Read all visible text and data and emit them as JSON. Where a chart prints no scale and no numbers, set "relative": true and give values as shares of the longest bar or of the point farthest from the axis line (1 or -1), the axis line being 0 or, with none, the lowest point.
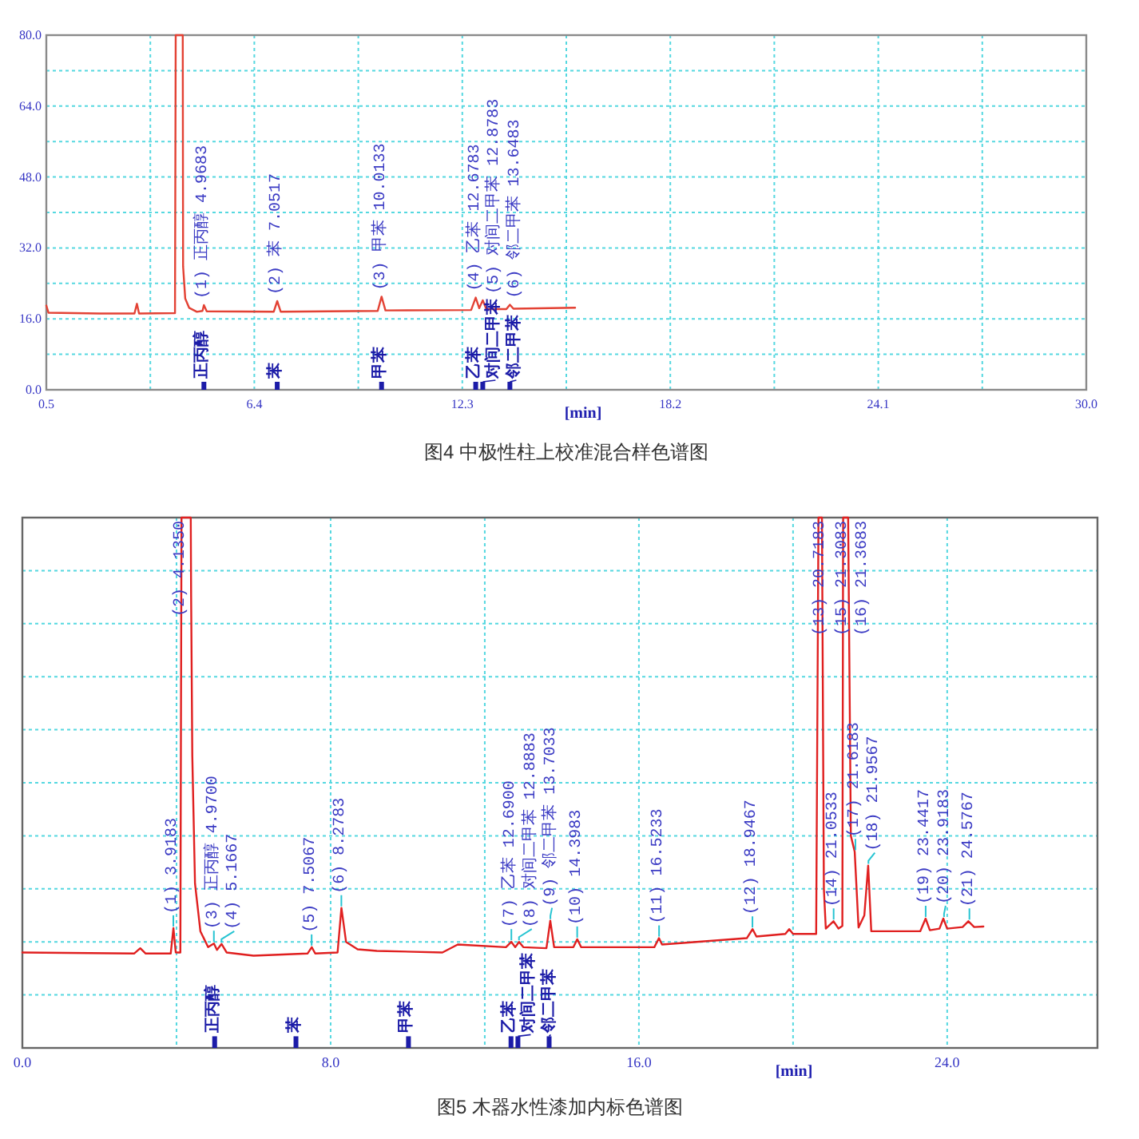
{
  "chart_data": [
    {
      "type": "line",
      "title": "图4 中极性柱上校准混合样色谱图",
      "xlabel": "[min]",
      "series": [
        {
          "color": "#e34234",
          "x": [
            0.5,
            0.56,
            2.0,
            3.0,
            3.07,
            3.13,
            4.15,
            4.17,
            4.37,
            4.38,
            4.44,
            4.55,
            4.77,
            4.93,
            4.97,
            5.05,
            6.95,
            7.05,
            7.15,
            9.9,
            10.01,
            10.12,
            12.55,
            12.68,
            12.78,
            12.88,
            12.98,
            13.55,
            13.65,
            13.75,
            15.5
          ],
          "values": [
            19.0,
            17.4,
            17.2,
            17.2,
            19.4,
            17.2,
            17.3,
            80,
            80,
            27.8,
            20.6,
            18.5,
            17.6,
            17.8,
            19.1,
            17.7,
            17.6,
            20.0,
            17.6,
            17.8,
            21.0,
            17.9,
            18.0,
            20.8,
            18.4,
            20.2,
            18.2,
            18.2,
            19.2,
            18.3,
            18.5
          ]
        },
        {
          "type": "bar",
          "color": "#1c1ca8",
          "x": [
            4.97,
            7.05,
            10.01,
            12.68,
            12.88,
            13.65
          ],
          "values": [
            1.8,
            1.8,
            1.8,
            1.8,
            1.8,
            1.8
          ]
        }
      ],
      "xlim": [
        0.5,
        30
      ],
      "xticks": [
        0.5,
        {
          "value": 3.45,
          "label": null
        },
        6.4,
        {
          "value": 9.35,
          "label": null
        },
        12.3,
        {
          "value": 15.25,
          "label": null
        },
        18.2,
        {
          "value": 21.15,
          "label": null
        },
        24.1,
        {
          "value": 27.05,
          "label": null
        },
        {
          "value": 30,
          "label": "30.0"
        }
      ],
      "ylim": [
        0,
        80
      ],
      "yticks": [
        {
          "value": 0,
          "label": "0.0"
        },
        {
          "value": 8,
          "label": null
        },
        {
          "value": 16,
          "label": "16.0"
        },
        {
          "value": 24,
          "label": null
        },
        {
          "value": 32,
          "label": "32.0"
        },
        {
          "value": 40,
          "label": null
        },
        {
          "value": 48,
          "label": "48.0"
        },
        {
          "value": 56,
          "label": null
        },
        {
          "value": 64,
          "label": "64.0"
        },
        {
          "value": 72,
          "label": null
        },
        {
          "value": 80,
          "label": "80.0"
        }
      ],
      "grid": true,
      "annotations": [
        {
          "text": "(1) 正丙醇 4.9683",
          "x": 4.9683,
          "y": 19.1
        },
        {
          "text": "(2) 苯 7.0517",
          "x": 7.0517,
          "y": 20.0
        },
        {
          "text": "(3) 甲苯 10.0133",
          "x": 10.0133,
          "y": 21.0
        },
        {
          "text": "(4) 乙苯 12.6783",
          "x": 12.6783,
          "y": 20.8
        },
        {
          "text": "(5) 对间二甲苯 12.8783",
          "x": 12.8783,
          "y": 20.2
        },
        {
          "text": "(6) 邻二甲苯 13.6483",
          "x": 13.6483,
          "y": 19.2
        },
        {
          "text": "正丙醇",
          "x": 4.97,
          "y": 1.8
        },
        {
          "text": "苯",
          "x": 7.05,
          "y": 1.8
        },
        {
          "text": "甲苯",
          "x": 10.01,
          "y": 1.8
        },
        {
          "text": "乙苯",
          "x": 12.68,
          "y": 1.8
        },
        {
          "text": "对间二甲苯",
          "x": 12.88,
          "y": 1.8
        },
        {
          "text": "邻二甲苯",
          "x": 13.65,
          "y": 1.8
        }
      ]
    },
    {
      "type": "line",
      "title": "图5 木器水性漆加内标色谱图",
      "xlabel": "[min]",
      "relative": true,
      "series": [
        {
          "color": "#e02020",
          "x": [
            0,
            2.9,
            3.06,
            3.2,
            3.85,
            3.92,
            3.98,
            4.1,
            4.13,
            4.37,
            4.38,
            4.41,
            4.48,
            4.62,
            4.82,
            4.97,
            5.05,
            5.17,
            5.3,
            6.0,
            7.4,
            7.51,
            7.6,
            8.18,
            8.28,
            8.4,
            8.7,
            9.2,
            10.9,
            11.3,
            12.55,
            12.69,
            12.79,
            12.89,
            13.0,
            13.6,
            13.7,
            13.8,
            14.3,
            14.4,
            14.5,
            16.4,
            16.52,
            16.6,
            18.8,
            18.95,
            19.05,
            19.8,
            19.9,
            20.0,
            20.6,
            20.66,
            20.75,
            20.8,
            20.85,
            21.05,
            21.18,
            21.28,
            21.3,
            21.43,
            21.5,
            21.6,
            21.7,
            21.85,
            21.95,
            22.03,
            23.3,
            23.44,
            23.55,
            23.8,
            23.9,
            24.0,
            24.4,
            24.55,
            24.7,
            24.94
          ],
          "values": [
            0.18,
            0.178,
            0.188,
            0.178,
            0.178,
            0.226,
            0.18,
            0.18,
            1,
            1,
            0.85,
            0.55,
            0.31,
            0.22,
            0.19,
            0.197,
            0.185,
            0.196,
            0.18,
            0.174,
            0.178,
            0.19,
            0.178,
            0.18,
            0.264,
            0.2,
            0.186,
            0.183,
            0.18,
            0.195,
            0.19,
            0.2,
            0.19,
            0.2,
            0.19,
            0.188,
            0.24,
            0.19,
            0.19,
            0.205,
            0.19,
            0.19,
            0.207,
            0.195,
            0.207,
            0.224,
            0.21,
            0.215,
            0.224,
            0.215,
            0.215,
            1,
            1,
            0.3,
            0.225,
            0.239,
            0.225,
            0.23,
            1,
            1,
            0.4,
            0.37,
            0.227,
            0.25,
            0.344,
            0.22,
            0.22,
            0.244,
            0.222,
            0.225,
            0.244,
            0.225,
            0.228,
            0.239,
            0.228,
            0.229
          ]
        },
        {
          "type": "bar",
          "color": "#1c1ca8",
          "x": [
            4.99,
            7.1,
            10.02,
            12.68,
            12.86,
            13.67
          ],
          "values": [
            0.022,
            0.022,
            0.022,
            0.022,
            0.022,
            0.022
          ]
        }
      ],
      "xlim": [
        0,
        27.9
      ],
      "xticks": [
        {
          "value": 0,
          "label": "0.0"
        },
        {
          "value": 4,
          "label": null
        },
        {
          "value": 8,
          "label": "8.0"
        },
        {
          "value": 12,
          "label": null
        },
        {
          "value": 16,
          "label": "16.0"
        },
        {
          "value": 20,
          "label": null
        },
        {
          "value": 24,
          "label": "24.0"
        }
      ],
      "grid": true,
      "annotations": [
        {
          "text": "(1) 3.9183",
          "x": 3.9183,
          "y": 0.226
        },
        {
          "text": "(2) 4.1350",
          "x": 4.135,
          "y": 1
        },
        {
          "text": "(3) 正丙醇 4.9700",
          "x": 4.97,
          "y": 0.197
        },
        {
          "text": "(4) 5.1667",
          "x": 5.1667,
          "y": 0.196
        },
        {
          "text": "(5) 7.5067",
          "x": 7.5067,
          "y": 0.19
        },
        {
          "text": "(6) 8.2783",
          "x": 8.2783,
          "y": 0.264
        },
        {
          "text": "(7) 乙苯 12.6900",
          "x": 12.69,
          "y": 0.2
        },
        {
          "text": "(8) 对间二甲苯 12.8883",
          "x": 12.8883,
          "y": 0.2
        },
        {
          "text": "(9) 邻二甲苯 13.7033",
          "x": 13.7033,
          "y": 0.24
        },
        {
          "text": "(10) 14.3983",
          "x": 14.3983,
          "y": 0.205
        },
        {
          "text": "(11) 16.5233",
          "x": 16.5233,
          "y": 0.207
        },
        {
          "text": "(12) 18.9467",
          "x": 18.9467,
          "y": 0.224
        },
        {
          "text": "(13) 20.7183",
          "x": 20.7183,
          "y": 1
        },
        {
          "text": "(14) 21.0533",
          "x": 21.0533,
          "y": 0.239
        },
        {
          "text": "(15) 21.3083",
          "x": 21.3083,
          "y": 1
        },
        {
          "text": "(16) 21.3683",
          "x": 21.3683,
          "y": 1
        },
        {
          "text": "(17) 21.6183",
          "x": 21.6183,
          "y": 0.37
        },
        {
          "text": "(18) 21.9567",
          "x": 21.9567,
          "y": 0.344
        },
        {
          "text": "(19) 23.4417",
          "x": 23.4417,
          "y": 0.244
        },
        {
          "text": "(20) 23.9183",
          "x": 23.9183,
          "y": 0.244
        },
        {
          "text": "(21) 24.5767",
          "x": 24.5767,
          "y": 0.239
        },
        {
          "text": "正丙醇",
          "x": 4.99,
          "y": 0.022
        },
        {
          "text": "苯",
          "x": 7.1,
          "y": 0.022
        },
        {
          "text": "甲苯",
          "x": 10.02,
          "y": 0.022
        },
        {
          "text": "乙苯",
          "x": 12.68,
          "y": 0.022
        },
        {
          "text": "对间二甲苯",
          "x": 12.86,
          "y": 0.022
        },
        {
          "text": "邻二甲苯",
          "x": 13.67,
          "y": 0.022
        }
      ]
    }
  ]
}
